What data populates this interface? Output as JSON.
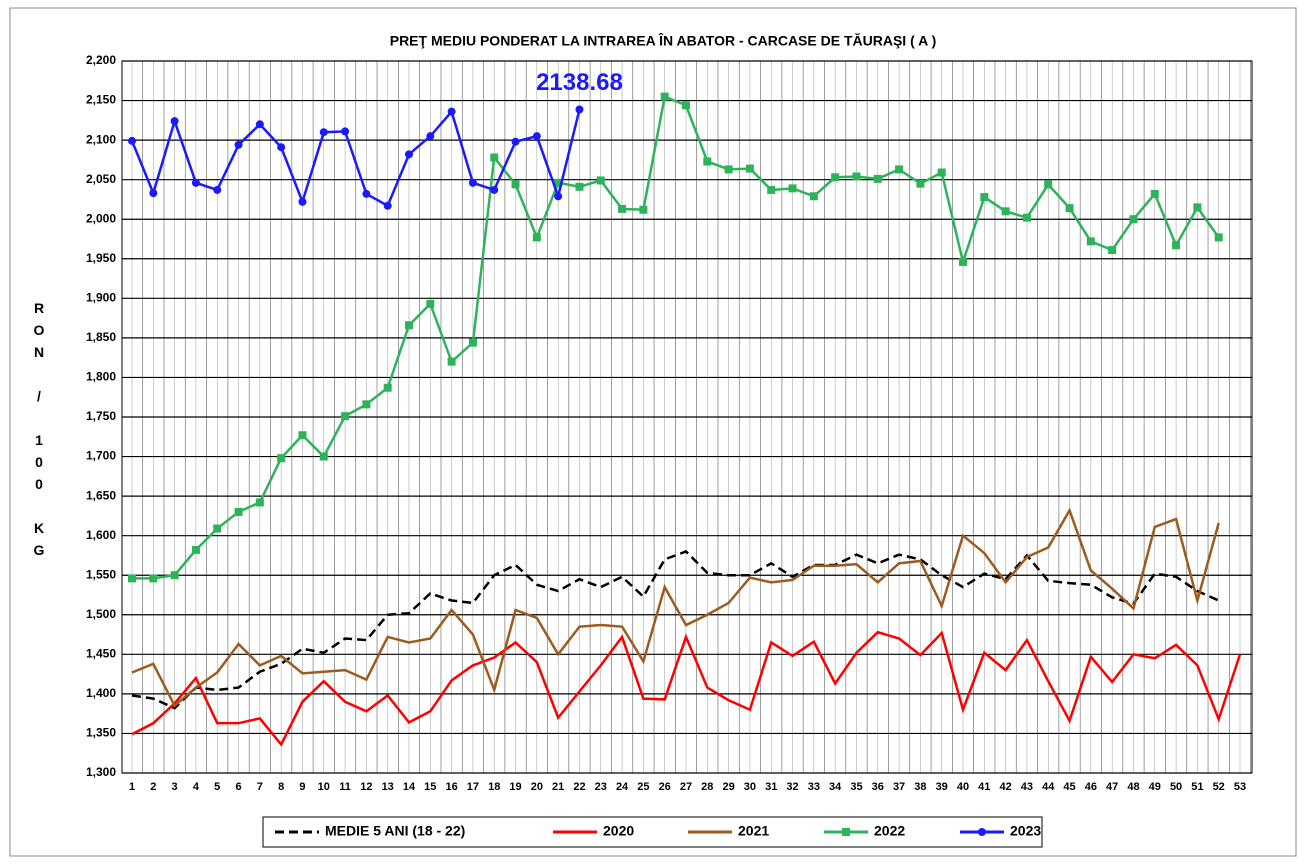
{
  "chart_data": {
    "type": "line",
    "title": "PREŢ MEDIU PONDERAT LA INTRAREA ÎN ABATOR  - CARCASE DE TĂURAŞI  ( A )",
    "y_label": "RON / 100 KG",
    "annotation": "2138.68",
    "categories": [
      1,
      2,
      3,
      4,
      5,
      6,
      7,
      8,
      9,
      10,
      11,
      12,
      13,
      14,
      15,
      16,
      17,
      18,
      19,
      20,
      21,
      22,
      23,
      24,
      25,
      26,
      27,
      28,
      29,
      30,
      31,
      32,
      33,
      34,
      35,
      36,
      37,
      38,
      39,
      40,
      41,
      42,
      43,
      44,
      45,
      46,
      47,
      48,
      49,
      50,
      51,
      52,
      53
    ],
    "ylim": [
      1300,
      2200
    ],
    "yticks": [
      {
        "value": 1300,
        "label": "1,300"
      },
      {
        "value": 1350,
        "label": "1,350"
      },
      {
        "value": 1400,
        "label": "1,400"
      },
      {
        "value": 1450,
        "label": "1,450"
      },
      {
        "value": 1500,
        "label": "1,500"
      },
      {
        "value": 1550,
        "label": "1,550"
      },
      {
        "value": 1600,
        "label": "1,600"
      },
      {
        "value": 1650,
        "label": "1,650"
      },
      {
        "value": 1700,
        "label": "1,700"
      },
      {
        "value": 1750,
        "label": "1,750"
      },
      {
        "value": 1800,
        "label": "1,800"
      },
      {
        "value": 1850,
        "label": "1,850"
      },
      {
        "value": 1900,
        "label": "1,900"
      },
      {
        "value": 1950,
        "label": "1,950"
      },
      {
        "value": 2000,
        "label": "2,000"
      },
      {
        "value": 2050,
        "label": "2,050"
      },
      {
        "value": 2100,
        "label": "2,100"
      },
      {
        "value": 2150,
        "label": "2,150"
      },
      {
        "value": 2200,
        "label": "2,200"
      }
    ],
    "grid": true,
    "legend": "bottom",
    "series": [
      {
        "name": "MEDIE 5 ANI (18 - 22)",
        "color": "#000000",
        "dash": true,
        "marker": "none",
        "values": [
          1398,
          1394,
          1382,
          1408,
          1405,
          1408,
          1428,
          1438,
          1457,
          1452,
          1470,
          1468,
          1500,
          1502,
          1527,
          1518,
          1515,
          1550,
          1563,
          1538,
          1530,
          1545,
          1535,
          1548,
          1523,
          1570,
          1580,
          1553,
          1550,
          1550,
          1565,
          1548,
          1563,
          1563,
          1576,
          1565,
          1576,
          1570,
          1550,
          1535,
          1552,
          1545,
          1575,
          1543,
          1540,
          1538,
          1522,
          1514,
          1552,
          1548,
          1530,
          1518,
          null
        ]
      },
      {
        "name": "2020",
        "color": "#ff0000",
        "dash": false,
        "marker": "none",
        "values": [
          1349,
          1363,
          1388,
          1420,
          1363,
          1363,
          1369,
          1336,
          1390,
          1416,
          1390,
          1378,
          1398,
          1364,
          1378,
          1417,
          1436,
          1446,
          1465,
          1440,
          1370,
          1403,
          1436,
          1472,
          1394,
          1393,
          1472,
          1408,
          1392,
          1380,
          1465,
          1448,
          1466,
          1413,
          1452,
          1478,
          1470,
          1449,
          1477,
          1380,
          1452,
          1430,
          1468,
          1416,
          1366,
          1447,
          1415,
          1450,
          1445,
          1462,
          1436,
          1368,
          1450
        ]
      },
      {
        "name": "2021",
        "color": "#9c5b1f",
        "dash": false,
        "marker": "none",
        "values": [
          1427,
          1438,
          1385,
          1408,
          1427,
          1463,
          1436,
          1448,
          1426,
          1428,
          1430,
          1418,
          1472,
          1465,
          1470,
          1506,
          1475,
          1405,
          1506,
          1496,
          1450,
          1485,
          1487,
          1485,
          1441,
          1535,
          1487,
          1500,
          1515,
          1547,
          1541,
          1544,
          1562,
          1562,
          1564,
          1541,
          1565,
          1568,
          1511,
          1600,
          1578,
          1541,
          1573,
          1585,
          1632,
          1556,
          1533,
          1508,
          1611,
          1621,
          1518,
          1616,
          null
        ]
      },
      {
        "name": "2022",
        "color": "#2db35a",
        "dash": false,
        "marker": "square",
        "values": [
          1546,
          1546,
          1550,
          1582,
          1609,
          1630,
          1642,
          1698,
          1727,
          1700,
          1751,
          1766,
          1787,
          1866,
          1893,
          1820,
          1844,
          2078,
          2044,
          1977,
          2046,
          2041,
          2049,
          2013,
          2012,
          2155,
          2144,
          2073,
          2063,
          2064,
          2037,
          2039,
          2029,
          2053,
          2054,
          2051,
          2063,
          2045,
          2059,
          1946,
          2028,
          2010,
          2002,
          2044,
          2014,
          1972,
          1961,
          2000,
          2032,
          1967,
          2015,
          1977,
          null
        ]
      },
      {
        "name": "2023",
        "color": "#1a1aff",
        "dash": false,
        "marker": "circle",
        "values": [
          2099,
          2033,
          2124,
          2046,
          2037,
          2094,
          2120,
          2091,
          2022,
          2110,
          2111,
          2032,
          2017,
          2082,
          2105,
          2136,
          2046,
          2037,
          2098,
          2105,
          2029,
          2138.68,
          null,
          null,
          null,
          null,
          null,
          null,
          null,
          null,
          null,
          null,
          null,
          null,
          null,
          null,
          null,
          null,
          null,
          null,
          null,
          null,
          null,
          null,
          null,
          null,
          null,
          null,
          null,
          null,
          null,
          null,
          null
        ]
      }
    ]
  }
}
